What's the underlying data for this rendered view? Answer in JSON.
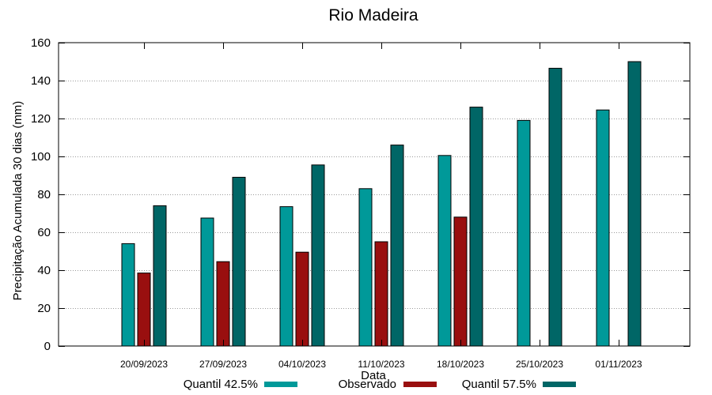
{
  "chart_data": {
    "type": "bar",
    "title": "Rio Madeira",
    "xlabel": "Data",
    "ylabel": "Precipitação Acumulada 30 dias (mm)",
    "ylim": [
      0,
      160
    ],
    "yticks": [
      0,
      20,
      40,
      60,
      80,
      100,
      120,
      140,
      160
    ],
    "grid": true,
    "legend_position": "bottom",
    "categories": [
      "20/09/2023",
      "27/09/2023",
      "04/10/2023",
      "11/10/2023",
      "18/10/2023",
      "25/10/2023",
      "01/11/2023"
    ],
    "series": [
      {
        "name": "Quantil 42.5%",
        "color": "#009999",
        "values": [
          54,
          67.5,
          73.5,
          83,
          100.5,
          119,
          124.5
        ]
      },
      {
        "name": "Observado",
        "color": "#990f0f",
        "values": [
          38.5,
          44.5,
          49.5,
          55,
          68,
          null,
          null
        ]
      },
      {
        "name": "Quantil 57.5%",
        "color": "#006666",
        "values": [
          74,
          89,
          95.5,
          106,
          126,
          146.5,
          150
        ]
      }
    ]
  }
}
